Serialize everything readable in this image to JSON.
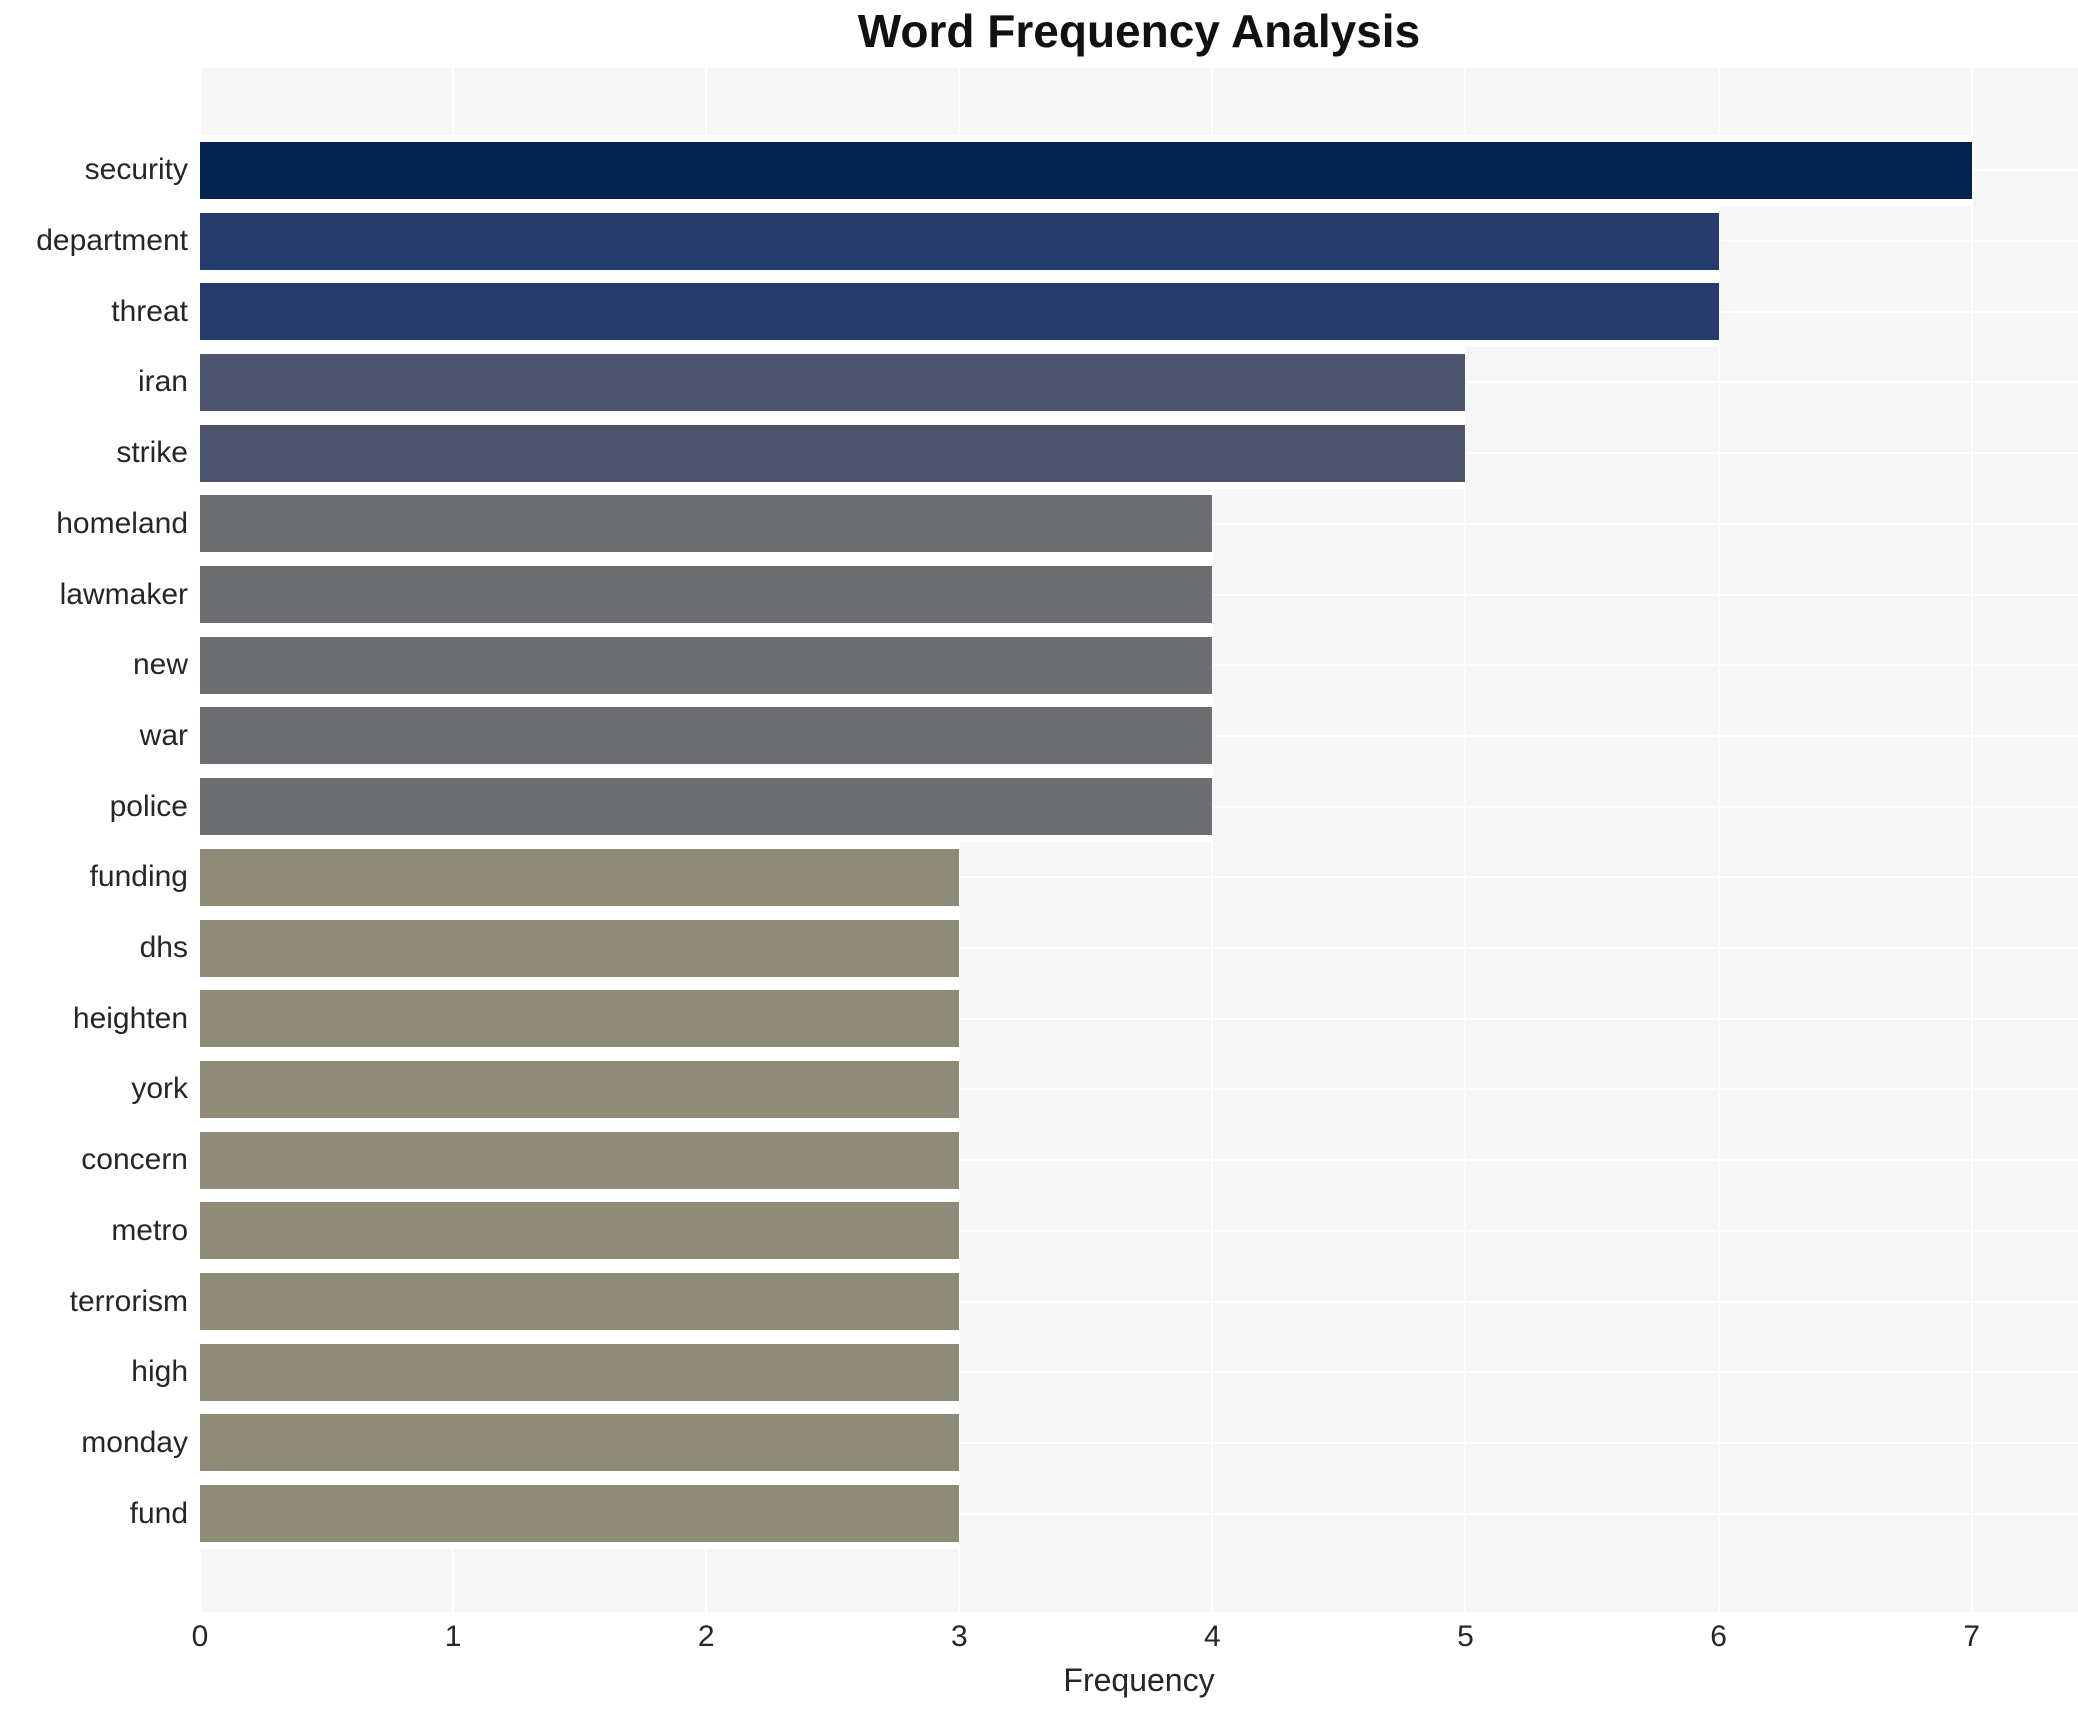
{
  "chart_data": {
    "type": "bar",
    "orientation": "horizontal",
    "title": "Word Frequency Analysis",
    "xlabel": "Frequency",
    "ylabel": "",
    "categories": [
      "security",
      "department",
      "threat",
      "iran",
      "strike",
      "homeland",
      "lawmaker",
      "new",
      "war",
      "police",
      "funding",
      "dhs",
      "heighten",
      "york",
      "concern",
      "metro",
      "terrorism",
      "high",
      "monday",
      "fund"
    ],
    "values": [
      7,
      6,
      6,
      5,
      5,
      4,
      4,
      4,
      4,
      4,
      3,
      3,
      3,
      3,
      3,
      3,
      3,
      3,
      3,
      3
    ],
    "xticks": [
      0,
      1,
      2,
      3,
      4,
      5,
      6,
      7
    ],
    "xlim": [
      0,
      7.42
    ],
    "grid": true,
    "legend": false,
    "plot_background": "#f6f6f7",
    "gridline_color": "#ffffff",
    "text_color": "#262626",
    "title_color": "#111111",
    "value_colors": {
      "7": "#02234e",
      "6": "#243b6c",
      "5": "#4d556e",
      "4": "#6d6e72",
      "3": "#8f8b79"
    }
  }
}
